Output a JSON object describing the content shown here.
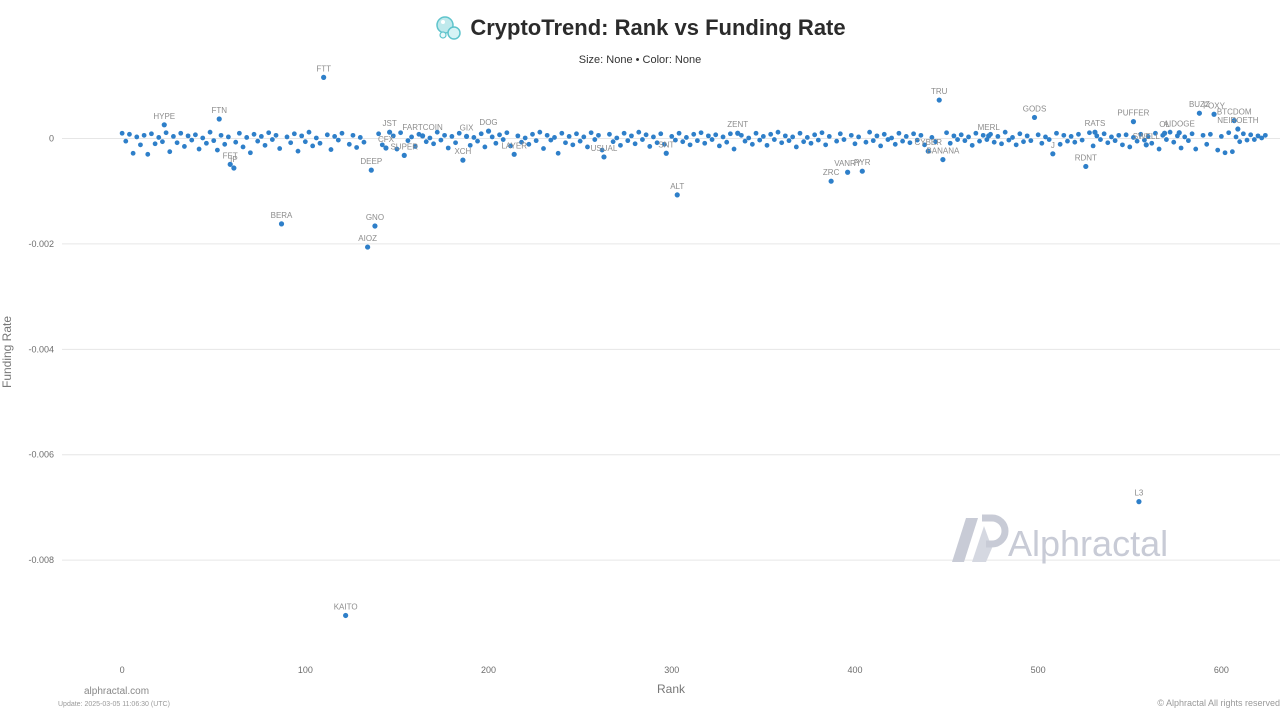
{
  "header": {
    "title": "CryptoTrend: Rank vs Funding Rate",
    "subtitle": "Size: None • Color: None"
  },
  "footer": {
    "site": "alphractal.com",
    "update": "Update: 2025-03-05 11:06:30 (UTC)",
    "copyright": "© Alphractal All rights reserved"
  },
  "watermark": {
    "text": "Alphractal"
  },
  "colors": {
    "point": "#2e7fc9",
    "label": "#8c8c8c",
    "grid": "#e6e6e6"
  },
  "chart_data": {
    "type": "scatter",
    "title": "CryptoTrend: Rank vs Funding Rate",
    "xlabel": "Rank",
    "ylabel": "Funding Rate",
    "xlim": [
      -35,
      632
    ],
    "ylim": [
      -0.0098,
      0.0013
    ],
    "x_ticks": [
      0,
      100,
      200,
      300,
      400,
      500,
      600
    ],
    "y_ticks": [
      0,
      -0.002,
      -0.004,
      -0.006,
      -0.008
    ],
    "grid": "horizontal",
    "legend": "none",
    "labeled_points": [
      {
        "name": "FTT",
        "x": 110,
        "y": 0.00116
      },
      {
        "name": "TRU",
        "x": 446,
        "y": 0.00073
      },
      {
        "name": "GODS",
        "x": 498,
        "y": 0.0004
      },
      {
        "name": "BUZZ",
        "x": 588,
        "y": 0.00048
      },
      {
        "name": "FOXY",
        "x": 596,
        "y": 0.00046
      },
      {
        "name": "BTCDOM",
        "x": 607,
        "y": 0.00034
      },
      {
        "name": "NEIROETH",
        "x": 609,
        "y": 0.00018
      },
      {
        "name": "PUFFER",
        "x": 552,
        "y": 0.00032
      },
      {
        "name": "RATS",
        "x": 531,
        "y": 0.00012
      },
      {
        "name": "AIDOGE",
        "x": 577,
        "y": 0.00011
      },
      {
        "name": "OL",
        "x": 569,
        "y": 0.0001
      },
      {
        "name": "HYPE",
        "x": 23,
        "y": 0.00026
      },
      {
        "name": "FTN",
        "x": 53,
        "y": 0.00037
      },
      {
        "name": "JST",
        "x": 146,
        "y": 0.00012
      },
      {
        "name": "DOG",
        "x": 200,
        "y": 0.00014
      },
      {
        "name": "ZENT",
        "x": 336,
        "y": 0.0001
      },
      {
        "name": "MERL",
        "x": 473,
        "y": 5e-05
      },
      {
        "name": "FARTCOIN",
        "x": 164,
        "y": 5e-05
      },
      {
        "name": "GIX",
        "x": 188,
        "y": 4e-05
      },
      {
        "name": "FET",
        "x": 59,
        "y": -0.00049
      },
      {
        "name": "IP",
        "x": 61,
        "y": -0.00056
      },
      {
        "name": "BERA",
        "x": 87,
        "y": -0.00162
      },
      {
        "name": "GNO",
        "x": 138,
        "y": -0.00166
      },
      {
        "name": "AIOZ",
        "x": 134,
        "y": -0.00206
      },
      {
        "name": "DEEP",
        "x": 136,
        "y": -0.0006
      },
      {
        "name": "KAITO",
        "x": 122,
        "y": -0.00905
      },
      {
        "name": "ALT",
        "x": 303,
        "y": -0.00107
      },
      {
        "name": "ZRC",
        "x": 387,
        "y": -0.00081
      },
      {
        "name": "VANRY",
        "x": 396,
        "y": -0.00064
      },
      {
        "name": "PYR",
        "x": 404,
        "y": -0.00062
      },
      {
        "name": "BANANA",
        "x": 448,
        "y": -0.0004
      },
      {
        "name": "CYBER",
        "x": 440,
        "y": -0.00024
      },
      {
        "name": "RDNT",
        "x": 526,
        "y": -0.00053
      },
      {
        "name": "J",
        "x": 508,
        "y": -0.00029
      },
      {
        "name": "L3",
        "x": 555,
        "y": -0.00689
      },
      {
        "name": "SWELL",
        "x": 559,
        "y": -0.00012
      },
      {
        "name": "SNT",
        "x": 297,
        "y": -0.00028
      },
      {
        "name": "USUAL",
        "x": 263,
        "y": -0.00035
      },
      {
        "name": "XCH",
        "x": 186,
        "y": -0.00041
      },
      {
        "name": "LAYER",
        "x": 214,
        "y": -0.0003
      },
      {
        "name": "CFX",
        "x": 144,
        "y": -0.00018
      },
      {
        "name": "SUPER",
        "x": 154,
        "y": -0.00032
      }
    ],
    "bulk_points_note": "Approximately 600 additional assets clustered between -0.0004 and 0.0002 across ranks 0–625",
    "bulk_points": [
      [
        0,
        0.0001
      ],
      [
        2,
        -5e-05
      ],
      [
        4,
        8e-05
      ],
      [
        6,
        -0.00028
      ],
      [
        8,
        3e-05
      ],
      [
        10,
        -0.00012
      ],
      [
        12,
        6e-05
      ],
      [
        14,
        -0.0003
      ],
      [
        16,
        9e-05
      ],
      [
        18,
        -0.0001
      ],
      [
        20,
        2e-05
      ],
      [
        22,
        -6e-05
      ],
      [
        24,
        0.00011
      ],
      [
        26,
        -0.00025
      ],
      [
        28,
        4e-05
      ],
      [
        30,
        -8e-05
      ],
      [
        32,
        0.0001
      ],
      [
        34,
        -0.00015
      ],
      [
        36,
        5e-05
      ],
      [
        38,
        -3e-05
      ],
      [
        40,
        7e-05
      ],
      [
        42,
        -0.0002
      ],
      [
        44,
        1e-05
      ],
      [
        46,
        -9e-05
      ],
      [
        48,
        0.00012
      ],
      [
        50,
        -4e-05
      ],
      [
        52,
        -0.00022
      ],
      [
        54,
        6e-05
      ],
      [
        56,
        -0.00011
      ],
      [
        58,
        3e-05
      ],
      [
        62,
        -7e-05
      ],
      [
        64,
        0.0001
      ],
      [
        66,
        -0.00016
      ],
      [
        68,
        2e-05
      ],
      [
        70,
        -0.00027
      ],
      [
        72,
        8e-05
      ],
      [
        74,
        -5e-05
      ],
      [
        76,
        4e-05
      ],
      [
        78,
        -0.00013
      ],
      [
        80,
        0.00011
      ],
      [
        82,
        -2e-05
      ],
      [
        84,
        6e-05
      ],
      [
        86,
        -0.00019
      ],
      [
        90,
        3e-05
      ],
      [
        92,
        -8e-05
      ],
      [
        94,
        9e-05
      ],
      [
        96,
        -0.00024
      ],
      [
        98,
        5e-05
      ],
      [
        100,
        -6e-05
      ],
      [
        102,
        0.00012
      ],
      [
        104,
        -0.00014
      ],
      [
        106,
        1e-05
      ],
      [
        108,
        -9e-05
      ],
      [
        112,
        7e-05
      ],
      [
        114,
        -0.00021
      ],
      [
        116,
        4e-05
      ],
      [
        118,
        -3e-05
      ],
      [
        120,
        0.0001
      ],
      [
        124,
        -0.00011
      ],
      [
        126,
        6e-05
      ],
      [
        128,
        -0.00017
      ],
      [
        130,
        2e-05
      ],
      [
        132,
        -7e-05
      ],
      [
        140,
        9e-05
      ],
      [
        142,
        -0.00012
      ],
      [
        148,
        5e-05
      ],
      [
        150,
        -0.0002
      ],
      [
        152,
        0.00011
      ],
      [
        156,
        -4e-05
      ],
      [
        158,
        3e-05
      ],
      [
        160,
        -0.00015
      ],
      [
        162,
        8e-05
      ],
      [
        166,
        -6e-05
      ],
      [
        168,
        1e-05
      ],
      [
        170,
        -0.0001
      ],
      [
        172,
        0.00012
      ],
      [
        174,
        -3e-05
      ],
      [
        176,
        6e-05
      ],
      [
        178,
        -0.00018
      ],
      [
        180,
        4e-05
      ],
      [
        182,
        -8e-05
      ],
      [
        184,
        0.0001
      ],
      [
        190,
        -0.00013
      ],
      [
        192,
        2e-05
      ],
      [
        194,
        -5e-05
      ],
      [
        196,
        9e-05
      ],
      [
        198,
        -0.00016
      ],
      [
        202,
        3e-05
      ],
      [
        204,
        -9e-05
      ],
      [
        206,
        7e-05
      ],
      [
        208,
        -2e-05
      ],
      [
        210,
        0.00011
      ],
      [
        212,
        -0.00014
      ],
      [
        216,
        5e-05
      ],
      [
        218,
        -7e-05
      ],
      [
        220,
        1e-05
      ],
      [
        222,
        -0.00011
      ],
      [
        224,
        8e-05
      ],
      [
        226,
        -4e-05
      ],
      [
        228,
        0.00012
      ],
      [
        230,
        -0.00019
      ],
      [
        232,
        6e-05
      ],
      [
        234,
        -3e-05
      ],
      [
        236,
        2e-05
      ],
      [
        238,
        -0.00028
      ],
      [
        240,
        0.0001
      ],
      [
        242,
        -8e-05
      ],
      [
        244,
        4e-05
      ],
      [
        246,
        -0.00012
      ],
      [
        248,
        9e-05
      ],
      [
        250,
        -5e-05
      ],
      [
        252,
        3e-05
      ],
      [
        254,
        -0.00016
      ],
      [
        256,
        0.00011
      ],
      [
        258,
        -2e-05
      ],
      [
        260,
        6e-05
      ],
      [
        262,
        -0.00022
      ],
      [
        266,
        8e-05
      ],
      [
        268,
        -6e-05
      ],
      [
        270,
        1e-05
      ],
      [
        272,
        -0.00013
      ],
      [
        274,
        0.0001
      ],
      [
        276,
        -4e-05
      ],
      [
        278,
        5e-05
      ],
      [
        280,
        -0.0001
      ],
      [
        282,
        0.00012
      ],
      [
        284,
        -2e-05
      ],
      [
        286,
        7e-05
      ],
      [
        288,
        -0.00015
      ],
      [
        290,
        3e-05
      ],
      [
        292,
        -8e-05
      ],
      [
        294,
        9e-05
      ],
      [
        296,
        -0.00011
      ],
      [
        300,
        4e-05
      ],
      [
        302,
        -3e-05
      ],
      [
        304,
        0.0001
      ],
      [
        306,
        -6e-05
      ],
      [
        308,
        2e-05
      ],
      [
        310,
        -0.00012
      ],
      [
        312,
        8e-05
      ],
      [
        314,
        -4e-05
      ],
      [
        316,
        0.00011
      ],
      [
        318,
        -9e-05
      ],
      [
        320,
        5e-05
      ],
      [
        322,
        -2e-05
      ],
      [
        324,
        7e-05
      ],
      [
        326,
        -0.00014
      ],
      [
        328,
        3e-05
      ],
      [
        330,
        -7e-05
      ],
      [
        332,
        9e-05
      ],
      [
        334,
        -0.0002
      ],
      [
        338,
        6e-05
      ],
      [
        340,
        -5e-05
      ],
      [
        342,
        1e-05
      ],
      [
        344,
        -0.00011
      ],
      [
        346,
        0.0001
      ],
      [
        348,
        -3e-05
      ],
      [
        350,
        4e-05
      ],
      [
        352,
        -0.00013
      ],
      [
        354,
        8e-05
      ],
      [
        356,
        -2e-05
      ],
      [
        358,
        0.00012
      ],
      [
        360,
        -8e-05
      ],
      [
        362,
        5e-05
      ],
      [
        364,
        -4e-05
      ],
      [
        366,
        3e-05
      ],
      [
        368,
        -0.00016
      ],
      [
        370,
        0.0001
      ],
      [
        372,
        -6e-05
      ],
      [
        374,
        2e-05
      ],
      [
        376,
        -9e-05
      ],
      [
        378,
        7e-05
      ],
      [
        380,
        -3e-05
      ],
      [
        382,
        0.00011
      ],
      [
        384,
        -0.00012
      ],
      [
        386,
        4e-05
      ],
      [
        390,
        -5e-05
      ],
      [
        392,
        9e-05
      ],
      [
        394,
        -2e-05
      ],
      [
        398,
        6e-05
      ],
      [
        400,
        -0.0001
      ],
      [
        402,
        3e-05
      ],
      [
        406,
        -7e-05
      ],
      [
        408,
        0.00012
      ],
      [
        410,
        -4e-05
      ],
      [
        412,
        5e-05
      ],
      [
        414,
        -0.00014
      ],
      [
        416,
        8e-05
      ],
      [
        418,
        -2e-05
      ],
      [
        420,
        1e-05
      ],
      [
        422,
        -0.00011
      ],
      [
        424,
        0.0001
      ],
      [
        426,
        -5e-05
      ],
      [
        428,
        4e-05
      ],
      [
        430,
        -8e-05
      ],
      [
        432,
        9e-05
      ],
      [
        434,
        -3e-05
      ],
      [
        436,
        6e-05
      ],
      [
        438,
        -0.00012
      ],
      [
        442,
        2e-05
      ],
      [
        444,
        -6e-05
      ],
      [
        450,
        0.00011
      ],
      [
        452,
        -9e-05
      ],
      [
        454,
        5e-05
      ],
      [
        456,
        -2e-05
      ],
      [
        458,
        7e-05
      ],
      [
        460,
        -4e-05
      ],
      [
        462,
        3e-05
      ],
      [
        464,
        -0.00013
      ],
      [
        466,
        0.0001
      ],
      [
        468,
        -5e-05
      ],
      [
        470,
        6e-05
      ],
      [
        472,
        -2e-05
      ],
      [
        474,
        8e-05
      ],
      [
        476,
        -7e-05
      ],
      [
        478,
        4e-05
      ],
      [
        480,
        -0.0001
      ],
      [
        482,
        0.00012
      ],
      [
        484,
        -3e-05
      ],
      [
        486,
        2e-05
      ],
      [
        488,
        -0.00012
      ],
      [
        490,
        9e-05
      ],
      [
        492,
        -6e-05
      ],
      [
        494,
        5e-05
      ],
      [
        496,
        -4e-05
      ],
      [
        500,
        7e-05
      ],
      [
        502,
        -9e-05
      ],
      [
        504,
        3e-05
      ],
      [
        506,
        -2e-05
      ],
      [
        510,
        0.0001
      ],
      [
        512,
        -0.00011
      ],
      [
        514,
        6e-05
      ],
      [
        516,
        -5e-05
      ],
      [
        518,
        4e-05
      ],
      [
        520,
        -7e-05
      ],
      [
        522,
        8e-05
      ],
      [
        524,
        -3e-05
      ],
      [
        528,
        0.00011
      ],
      [
        530,
        -0.00014
      ],
      [
        532,
        5e-05
      ],
      [
        534,
        -2e-05
      ],
      [
        536,
        9e-05
      ],
      [
        538,
        -8e-05
      ],
      [
        540,
        3e-05
      ],
      [
        542,
        -4e-05
      ],
      [
        544,
        6e-05
      ],
      [
        546,
        -0.00012
      ],
      [
        548,
        7e-05
      ],
      [
        550,
        -0.00016
      ],
      [
        552,
        2e-05
      ],
      [
        554,
        -5e-05
      ],
      [
        556,
        8e-05
      ],
      [
        558,
        -3e-05
      ],
      [
        560,
        4e-05
      ],
      [
        562,
        -9e-05
      ],
      [
        564,
        0.0001
      ],
      [
        566,
        -0.0002
      ],
      [
        568,
        6e-05
      ],
      [
        570,
        -2e-05
      ],
      [
        572,
        0.00012
      ],
      [
        574,
        -7e-05
      ],
      [
        576,
        5e-05
      ],
      [
        578,
        -0.00018
      ],
      [
        580,
        3e-05
      ],
      [
        582,
        -4e-05
      ],
      [
        584,
        9e-05
      ],
      [
        586,
        -0.0002
      ],
      [
        590,
        6e-05
      ],
      [
        592,
        -0.00011
      ],
      [
        594,
        8e-05
      ],
      [
        598,
        -0.00022
      ],
      [
        600,
        4e-05
      ],
      [
        602,
        -0.00027
      ],
      [
        604,
        0.00011
      ],
      [
        606,
        -0.00025
      ],
      [
        608,
        3e-05
      ],
      [
        610,
        -6e-05
      ],
      [
        612,
        9e-05
      ],
      [
        614,
        -3e-05
      ],
      [
        616,
        7e-05
      ],
      [
        618,
        -2e-05
      ],
      [
        620,
        5e-05
      ],
      [
        622,
        1e-05
      ],
      [
        624,
        6e-05
      ]
    ]
  }
}
